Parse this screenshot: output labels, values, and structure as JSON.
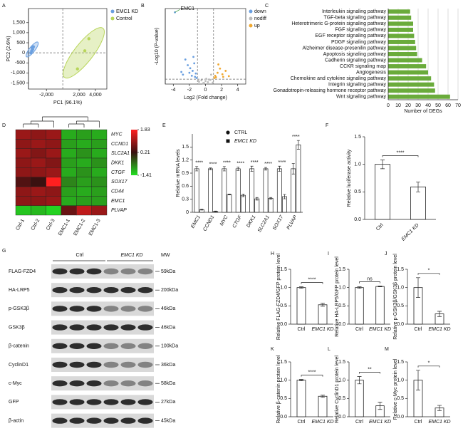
{
  "chart_data": [
    {
      "panel": "A",
      "type": "scatter",
      "xlabel": "PC1 (96.1%)",
      "ylabel": "PC2 (2.6%)",
      "xlim": [
        -4200,
        5400
      ],
      "ylim": [
        -1800,
        2200
      ],
      "xticks": [
        {
          "value": -2000,
          "label": "-2,000"
        },
        {
          "value": 2000,
          "label": "2,000"
        },
        {
          "value": 4000,
          "label": "4,000"
        }
      ],
      "yticks": [
        {
          "value": -1500,
          "label": "-1,500"
        },
        {
          "value": -1000,
          "label": "-1,000"
        },
        -500,
        0,
        500,
        {
          "value": 1000,
          "label": "1,000"
        },
        {
          "value": 1500,
          "label": "1,500"
        }
      ],
      "zero_lines": true,
      "ellipses": true,
      "legend": "right",
      "series": [
        {
          "name": "EMC1 KD",
          "color": "#6a9fe0",
          "x": [
            -3900,
            -3800,
            -3700,
            -3750,
            -3600
          ],
          "values": [
            0,
            100,
            180,
            250,
            300
          ]
        },
        {
          "name": "Control",
          "color": "#b8d55a",
          "x": [
            2700,
            1800,
            3200
          ],
          "values": [
            100,
            -800,
            700
          ]
        }
      ]
    },
    {
      "panel": "B",
      "type": "scatter",
      "xlabel": "Log2 (Fold change)",
      "ylabel": "-Log10 (P-value)",
      "xlim": [
        -5,
        5
      ],
      "ylim": [
        0,
        20
      ],
      "xticks": [
        -4,
        -2,
        0,
        2,
        4
      ],
      "threshold_lines": {
        "x": [
          -1,
          1
        ],
        "y": [
          1.3
        ]
      },
      "legend": "right",
      "annotation": "EMC1",
      "series": [
        {
          "name": "down",
          "color": "#6a9fe0",
          "x": [
            -3.8,
            -2.5,
            -2.2,
            -1.9,
            -1.6,
            -1.4,
            -1.2,
            -3.0,
            -2.8,
            -1.7,
            -1.3,
            -2.0,
            -1.1,
            -1.5
          ],
          "values": [
            19,
            6.5,
            5,
            4.2,
            3.5,
            5.5,
            2.8,
            3.2,
            2.5,
            2.2,
            1.9,
            3.0,
            1.6,
            7.2
          ]
        },
        {
          "name": "nodiff",
          "color": "#bbbbbb",
          "x": [
            -0.8,
            -0.5,
            -0.2,
            0,
            0.3,
            0.6,
            0.9,
            -0.9,
            0.4,
            -0.3,
            0.1,
            0.7
          ],
          "values": [
            0.6,
            1.0,
            0.3,
            0.8,
            0.5,
            1.1,
            0.4,
            0.9,
            1.2,
            0.2,
            1.4,
            2.5
          ]
        },
        {
          "name": "up",
          "color": "#f0a830",
          "x": [
            1.2,
            1.5,
            1.8,
            2.1,
            2.5,
            1.3,
            1.6,
            2.9,
            1.1,
            2.2
          ],
          "values": [
            2.2,
            3.0,
            4.1,
            2.6,
            3.5,
            1.8,
            5.2,
            2.1,
            1.6,
            1.9
          ]
        }
      ]
    },
    {
      "panel": "C",
      "type": "barh",
      "xlabel": "Number of DEGs",
      "color": "#6aab3b",
      "xlim": [
        0,
        70
      ],
      "xticks": [
        0,
        10,
        20,
        30,
        40,
        50,
        60,
        70
      ],
      "grid": true,
      "categories": [
        "Interleukin signaling pathway",
        "TGF-beta signaling pathway",
        "Heterotrimeric G-protein signaling pathway",
        "FGF signaling pathway",
        "EGF receptor signaling pathway",
        "PDGF signaling pathway",
        "Alzheimer disease-presenilin pathway",
        "Apoptosis signaling pathway",
        "Cadherin signaling pathway",
        "CCKR signaling map",
        "Angiogenesis",
        "Chemokine and cytokine signaling pathway",
        "Integrin signaling pathway",
        "Gonadotropin-releasing hormone receptor pathway",
        "Wnt signaling pathway"
      ],
      "values": [
        22,
        23,
        25,
        25,
        26,
        27,
        28,
        29,
        34,
        38,
        40,
        43,
        46,
        47,
        62
      ]
    },
    {
      "panel": "D",
      "type": "heatmap",
      "columns": [
        "Ctrl-1",
        "Ctrl-2",
        "Ctrl-3",
        "EMC1-1",
        "EMC1-2",
        "EMC1-3"
      ],
      "rows": [
        "MYC",
        "CCND1",
        "SLC2A1",
        "DKK1",
        "CTGF",
        "SOX17",
        "CD44",
        "EMC1",
        "PLVAP"
      ],
      "values": [
        [
          1.0,
          0.9,
          1.0,
          -1.0,
          -0.9,
          -1.0
        ],
        [
          0.9,
          1.0,
          0.9,
          -0.9,
          -1.0,
          -0.9
        ],
        [
          1.0,
          0.8,
          1.0,
          -1.0,
          -0.8,
          -1.0
        ],
        [
          0.9,
          1.0,
          0.8,
          -0.9,
          -1.0,
          -0.8
        ],
        [
          0.9,
          0.9,
          1.0,
          -1.0,
          -0.8,
          -1.0
        ],
        [
          0.4,
          0.2,
          1.83,
          -0.7,
          -0.9,
          -0.8
        ],
        [
          0.9,
          1.0,
          0.9,
          -0.9,
          -1.0,
          -0.9
        ],
        [
          0.9,
          0.9,
          1.0,
          -1.0,
          -0.9,
          -0.9
        ],
        [
          -1.2,
          -1.1,
          -1.3,
          0.6,
          1.3,
          1.0
        ]
      ],
      "zticks": [
        1.83,
        0.21,
        -1.41
      ],
      "colors": [
        "#ff2020",
        "#3a1010",
        "#22e022"
      ]
    },
    {
      "panel": "E",
      "type": "group",
      "ylabel": "Relative mRNA levels",
      "ylim": [
        0,
        1.8
      ],
      "yticks": [
        0,
        0.3,
        0.6,
        0.9,
        1.2,
        1.5
      ],
      "categories": [
        "EMC1",
        "CCND1",
        "MYC",
        "CTGF",
        "DKK1",
        "SLC2A1",
        "SOX17",
        "PLVAP"
      ],
      "series": [
        {
          "name": "CTRL",
          "color": "#ffffff",
          "marker": "circle",
          "values": [
            1.0,
            1.0,
            1.0,
            1.0,
            1.0,
            1.0,
            1.0,
            1.0
          ],
          "errors": [
            0.05,
            0.02,
            0.05,
            0.04,
            0.06,
            0.03,
            0.06,
            0.12
          ]
        },
        {
          "name": "EMC1 KD",
          "color": "#ffffff",
          "marker": "square",
          "values": [
            0.06,
            0.02,
            0.41,
            0.39,
            0.31,
            0.32,
            0.36,
            1.55
          ],
          "errors": [
            0.01,
            0.01,
            0.01,
            0.03,
            0.03,
            0.02,
            0.05,
            0.1
          ]
        }
      ],
      "annotations": [
        "****",
        "****",
        "****",
        "****",
        "****",
        "****",
        "****",
        "****"
      ]
    },
    {
      "panel": "F",
      "type": "bar",
      "ylabel": "Relative luciferase activity",
      "categories": [
        "Ctrl",
        "EMC1 KD"
      ],
      "values": [
        1.0,
        0.59
      ],
      "errors": [
        0.08,
        0.09
      ],
      "annotation": "****",
      "ylim": [
        0,
        1.5
      ],
      "yticks": [
        {
          "value": 0,
          "label": "0.0"
        },
        {
          "value": 0.5,
          "label": "0.5"
        },
        {
          "value": 1,
          "label": "1.0"
        },
        {
          "value": 1.5,
          "label": "1.5"
        }
      ]
    },
    {
      "panel": "H",
      "type": "bar",
      "ylabel": "Relative FLAG-FZD4/GFP protein level",
      "categories": [
        "Ctrl",
        "EMC1 KD"
      ],
      "values": [
        1.0,
        0.53
      ],
      "errors": [
        0.02,
        0.04
      ],
      "annotation": "****",
      "ylim": [
        0,
        1.5
      ],
      "yticks": [
        {
          "value": 0,
          "label": "0.0"
        },
        {
          "value": 0.5,
          "label": "0.5"
        },
        {
          "value": 1,
          "label": "1.0"
        },
        {
          "value": 1.5,
          "label": "1.5"
        }
      ]
    },
    {
      "panel": "I",
      "type": "bar",
      "ylabel": "Relative HA-LRP5/GFP protein level",
      "categories": [
        "Ctrl",
        "EMC1 KD"
      ],
      "values": [
        1.0,
        1.03
      ],
      "errors": [
        0.02,
        0.01
      ],
      "annotation": "ns",
      "ylim": [
        0,
        1.5
      ],
      "yticks": [
        {
          "value": 0,
          "label": "0.0"
        },
        {
          "value": 0.5,
          "label": "0.5"
        },
        {
          "value": 1,
          "label": "1.0"
        },
        {
          "value": 1.5,
          "label": "1.5"
        }
      ]
    },
    {
      "panel": "J",
      "type": "bar",
      "ylabel": "Relative p-GSK3β/GSK3β protein level",
      "categories": [
        "Ctrl",
        "EMC1 KD"
      ],
      "values": [
        1.0,
        0.28
      ],
      "errors": [
        0.27,
        0.07
      ],
      "annotation": "*",
      "ylim": [
        0,
        1.5
      ],
      "yticks": [
        {
          "value": 0,
          "label": "0.0"
        },
        {
          "value": 0.5,
          "label": "0.5"
        },
        {
          "value": 1,
          "label": "1.0"
        },
        {
          "value": 1.5,
          "label": "1.5"
        }
      ]
    },
    {
      "panel": "K",
      "type": "bar",
      "ylabel": "Relative β-catenin protein level",
      "categories": [
        "Ctrl",
        "EMC1 KD"
      ],
      "values": [
        1.0,
        0.56
      ],
      "errors": [
        0.02,
        0.03
      ],
      "annotation": "****",
      "ylim": [
        0,
        1.5
      ],
      "yticks": [
        {
          "value": 0,
          "label": "0.0"
        },
        {
          "value": 0.5,
          "label": "0.5"
        },
        {
          "value": 1,
          "label": "1.0"
        },
        {
          "value": 1.5,
          "label": "1.5"
        }
      ]
    },
    {
      "panel": "L",
      "type": "bar",
      "ylabel": "Relative CyclinD1 protein level",
      "categories": [
        "Ctrl",
        "EMC1 KD"
      ],
      "values": [
        1.0,
        0.3
      ],
      "errors": [
        0.1,
        0.1
      ],
      "annotation": "**",
      "ylim": [
        0,
        1.5
      ],
      "yticks": [
        {
          "value": 0,
          "label": "0.0"
        },
        {
          "value": 0.5,
          "label": "0.5"
        },
        {
          "value": 1,
          "label": "1.0"
        },
        {
          "value": 1.5,
          "label": "1.5"
        }
      ]
    },
    {
      "panel": "M",
      "type": "bar",
      "ylabel": "Relative c-Myc protein level",
      "categories": [
        "Ctrl",
        "EMC1 KD"
      ],
      "values": [
        1.0,
        0.24
      ],
      "errors": [
        0.27,
        0.07
      ],
      "annotation": "*",
      "ylim": [
        0,
        1.5
      ],
      "yticks": [
        {
          "value": 0,
          "label": "0.0"
        },
        {
          "value": 0.5,
          "label": "0.5"
        },
        {
          "value": 1,
          "label": "1.0"
        },
        {
          "value": 1.5,
          "label": "1.5"
        }
      ]
    }
  ],
  "blot": {
    "panel": "G",
    "columns": [
      "Ctrl",
      "EMC1 KD"
    ],
    "mw_header": "MW",
    "rows": [
      {
        "label": "FLAG-FZD4",
        "mw": "59kDa"
      },
      {
        "label": "HA-LRP5",
        "mw": "200kDa"
      },
      {
        "label": "p-GSK3β",
        "mw": "46kDa"
      },
      {
        "label": "GSK3β",
        "mw": "46kDa"
      },
      {
        "label": "β-catenin",
        "mw": "100kDa"
      },
      {
        "label": "CyclinD1",
        "mw": "36kDa"
      },
      {
        "label": "c-Myc",
        "mw": "58kDa"
      },
      {
        "label": "GFP",
        "mw": "27kDa"
      },
      {
        "label": "β-actin",
        "mw": "45kDa"
      }
    ]
  }
}
